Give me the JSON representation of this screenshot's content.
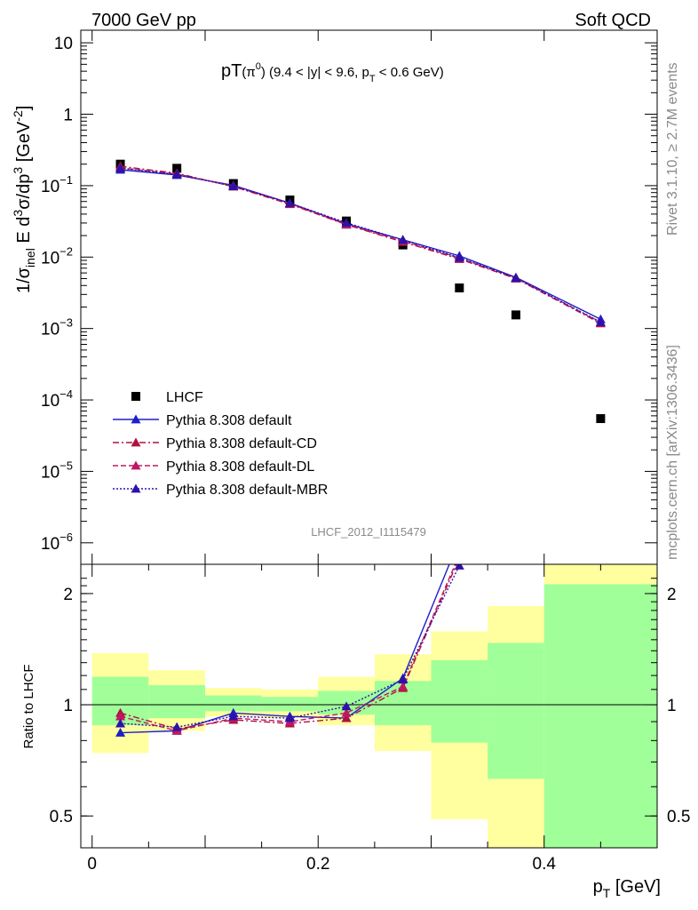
{
  "header": {
    "left": "7000 GeV pp",
    "right": "Soft QCD",
    "side_top": "Rivet 3.1.10, ≥ 2.7M events",
    "side_bottom": "mcplots.cern.ch [arXiv:1306.3436]",
    "analysis_id": "LHCF_2012_I1115479"
  },
  "colors": {
    "data": "#000000",
    "default": "#1f1fc8",
    "default_cd": "#b01040",
    "default_dl": "#c01860",
    "default_mbr": "#3010a8",
    "band_inner": "#a0ff98",
    "band_outer": "#ffff9f"
  },
  "chart_data": [
    {
      "type": "scatter",
      "title_main": "pT",
      "title_sub_1": "(π",
      "title_sup_1": "0",
      "title_sub_2": ") (9.4 < |y| < 9.6, p",
      "title_sub_3": "T",
      "title_sub_4": " < 0.6 GeV)",
      "ylabel_parts": [
        "1/σ",
        "inel",
        " E d",
        "3",
        "σ/dp",
        "3",
        " [GeV",
        "-2",
        "]"
      ],
      "log_y": true,
      "xlim": [
        -0.01,
        0.5
      ],
      "ylim": [
        5e-07,
        15
      ],
      "y_ticks": [
        {
          "value": 1e-06,
          "base": "10",
          "exp": "−6"
        },
        {
          "value": 1e-05,
          "base": "10",
          "exp": "−5"
        },
        {
          "value": 0.0001,
          "base": "10",
          "exp": "−4"
        },
        {
          "value": 0.001,
          "base": "10",
          "exp": "−3"
        },
        {
          "value": 0.01,
          "base": "10",
          "exp": "−2"
        },
        {
          "value": 0.1,
          "base": "10",
          "exp": "−1"
        },
        {
          "value": 1,
          "base": "1",
          "exp": ""
        },
        {
          "value": 10,
          "base": "10",
          "exp": ""
        }
      ],
      "x": [
        0.025,
        0.075,
        0.125,
        0.175,
        0.225,
        0.275,
        0.325,
        0.375,
        0.45
      ],
      "series": [
        {
          "name": "LHCF",
          "key": "data",
          "style": "data",
          "values": [
            0.2,
            0.175,
            0.107,
            0.063,
            0.032,
            0.0148,
            0.0037,
            0.00155,
            5.48e-05
          ]
        },
        {
          "name": "Pythia 8.308 default",
          "key": "default",
          "style": "solid",
          "values": [
            0.167,
            0.141,
            0.101,
            0.057,
            0.0293,
            0.0175,
            0.0104,
            0.0052,
            0.00135
          ]
        },
        {
          "name": "Pythia 8.308 default-CD",
          "key": "default_cd",
          "style": "dashdot",
          "values": [
            0.187,
            0.149,
            0.097,
            0.055,
            0.0284,
            0.0163,
            0.0094,
            0.005,
            0.00118
          ]
        },
        {
          "name": "Pythia 8.308 default-DL",
          "key": "default_dl",
          "style": "dashed",
          "values": [
            0.178,
            0.145,
            0.099,
            0.056,
            0.0287,
            0.0167,
            0.0097,
            0.0051,
            0.00122
          ]
        },
        {
          "name": "Pythia 8.308 default-MBR",
          "key": "default_mbr",
          "style": "dotted",
          "values": [
            0.176,
            0.144,
            0.098,
            0.057,
            0.0302,
            0.0174,
            0.0098,
            0.0051,
            0.00123
          ]
        }
      ]
    },
    {
      "type": "line",
      "ylabel": "Ratio to LHCF",
      "xlabel_main": "p",
      "xlabel_sub": "T",
      "xlabel_unit": " [GeV]",
      "log_y": true,
      "xlim": [
        -0.01,
        0.5
      ],
      "ylim": [
        0.41,
        2.4
      ],
      "y_ticks": [
        {
          "value": 0.5,
          "label": "0.5"
        },
        {
          "value": 1,
          "label": "1"
        },
        {
          "value": 2,
          "label": "2"
        }
      ],
      "x_ticks": [
        {
          "value": 0,
          "label": "0"
        },
        {
          "value": 0.2,
          "label": "0.2"
        },
        {
          "value": 0.4,
          "label": "0.4"
        }
      ],
      "bands": [
        {
          "x0": 0.0,
          "x1": 0.05,
          "inner": [
            0.88,
            1.19
          ],
          "outer": [
            0.74,
            1.38
          ]
        },
        {
          "x0": 0.05,
          "x1": 0.1,
          "inner": [
            0.92,
            1.13
          ],
          "outer": [
            0.85,
            1.24
          ]
        },
        {
          "x0": 0.1,
          "x1": 0.15,
          "inner": [
            0.96,
            1.06
          ],
          "outer": [
            0.93,
            1.11
          ]
        },
        {
          "x0": 0.15,
          "x1": 0.2,
          "inner": [
            0.96,
            1.05
          ],
          "outer": [
            0.92,
            1.1
          ]
        },
        {
          "x0": 0.2,
          "x1": 0.25,
          "inner": [
            0.94,
            1.09
          ],
          "outer": [
            0.88,
            1.19
          ]
        },
        {
          "x0": 0.25,
          "x1": 0.3,
          "inner": [
            0.88,
            1.16
          ],
          "outer": [
            0.75,
            1.37
          ]
        },
        {
          "x0": 0.3,
          "x1": 0.35,
          "inner": [
            0.79,
            1.32
          ],
          "outer": [
            0.49,
            1.58
          ]
        },
        {
          "x0": 0.35,
          "x1": 0.4,
          "inner": [
            0.63,
            1.47
          ],
          "outer": [
            0.41,
            1.85
          ]
        },
        {
          "x0": 0.4,
          "x1": 0.5,
          "inner": [
            0.41,
            2.12
          ],
          "outer": [
            0.41,
            2.4
          ]
        }
      ],
      "x": [
        0.025,
        0.075,
        0.125,
        0.175,
        0.225,
        0.275,
        0.325
      ],
      "series": [
        {
          "name": "Pythia 8.308 default",
          "key": "default",
          "style": "solid",
          "values": [
            0.84,
            0.85,
            0.95,
            0.93,
            0.92,
            1.18,
            2.8
          ]
        },
        {
          "name": "Pythia 8.308 default-CD",
          "key": "default_cd",
          "style": "dashdot",
          "values": [
            0.95,
            0.86,
            0.91,
            0.89,
            0.92,
            1.11,
            2.5
          ]
        },
        {
          "name": "Pythia 8.308 default-DL",
          "key": "default_dl",
          "style": "dashed",
          "values": [
            0.93,
            0.85,
            0.92,
            0.9,
            0.95,
            1.12,
            2.55
          ]
        },
        {
          "name": "Pythia 8.308 default-MBR",
          "key": "default_mbr",
          "style": "dotted",
          "values": [
            0.89,
            0.87,
            0.93,
            0.92,
            0.99,
            1.17,
            2.38
          ]
        }
      ]
    }
  ]
}
